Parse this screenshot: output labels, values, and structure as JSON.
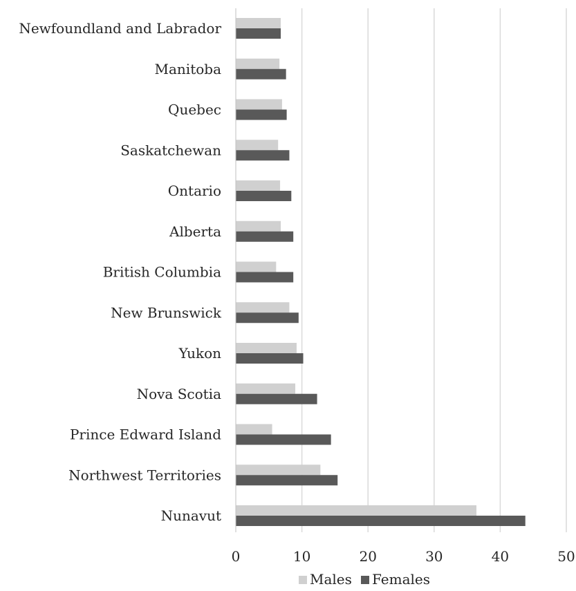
{
  "chart_data": {
    "type": "bar",
    "orientation": "horizontal",
    "categories": [
      "Newfoundland and Labrador",
      "Manitoba",
      "Quebec",
      "Saskatchewan",
      "Ontario",
      "Alberta",
      "British Columbia",
      "New Brunswick",
      "Yukon",
      "Nova Scotia",
      "Prince Edward Island",
      "Northwest Territories",
      "Nunavut"
    ],
    "series": [
      {
        "name": "Males",
        "color": "#d0d0d0",
        "values": [
          6.8,
          6.6,
          7.0,
          6.4,
          6.7,
          6.8,
          6.1,
          8.1,
          9.2,
          9.0,
          5.5,
          12.8,
          36.4
        ]
      },
      {
        "name": "Females",
        "color": "#595959",
        "values": [
          6.8,
          7.6,
          7.7,
          8.1,
          8.4,
          8.7,
          8.7,
          9.5,
          10.2,
          12.3,
          14.4,
          15.4,
          43.8
        ]
      }
    ],
    "xlim": [
      0,
      50
    ],
    "xticks": [
      "0",
      "10",
      "20",
      "30",
      "40",
      "50"
    ],
    "grid": "vertical",
    "legend": "bottom",
    "title": "",
    "xlabel": "",
    "ylabel": ""
  }
}
